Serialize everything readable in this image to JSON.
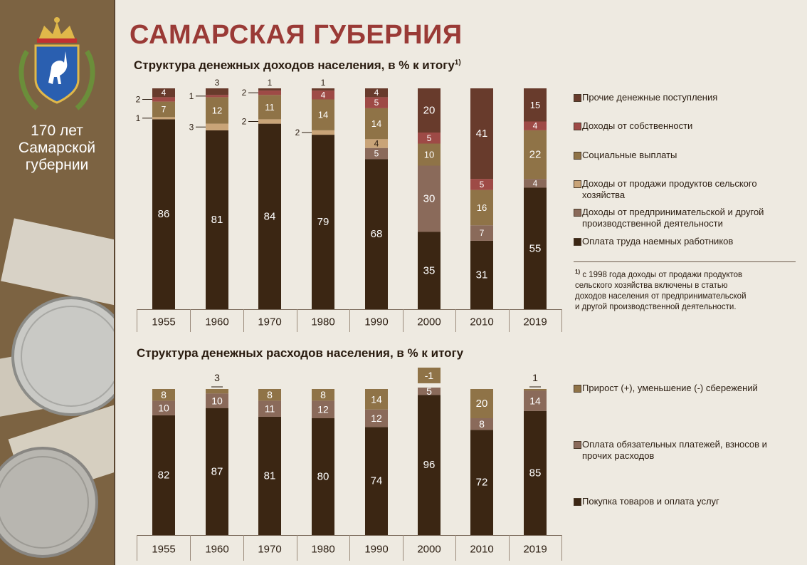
{
  "page": {
    "title": "САМАРСКАЯ ГУБЕРНИЯ",
    "sidebar_lines": [
      "170 лет",
      "Самарской",
      "губернии"
    ],
    "footnote": {
      "mark": "1)",
      "lines": [
        "с 1998 года доходы от продажи продуктов",
        "сельского хозяйства включены в статью",
        "доходов населения от предпринимательской",
        "и другой производственной деятельности."
      ]
    }
  },
  "colors": {
    "wages": "#3b2613",
    "business": "#8a6a5a",
    "agri": "#c9a478",
    "social": "#8f7347",
    "property": "#9e4a46",
    "other": "#683b2c",
    "spend_goods": "#3b2613",
    "spend_payments": "#8a6a5a",
    "spend_savings": "#8f7347"
  },
  "chart_data": [
    {
      "type": "bar",
      "stacked": true,
      "title": "Структура денежных доходов населения, в % к итогу",
      "title_note": "1)",
      "categories": [
        "1955",
        "1960",
        "1970",
        "1980",
        "1990",
        "2000",
        "2010",
        "2019"
      ],
      "ylim": [
        0,
        100
      ],
      "grid": false,
      "legend_position": "right",
      "series": [
        {
          "key": "wages",
          "name": "Оплата труда наемных работников",
          "values": [
            86,
            81,
            84,
            79,
            68,
            35,
            31,
            55
          ]
        },
        {
          "key": "business",
          "name": "Доходы от предпринимательской и другой производственной деятельности",
          "values": [
            0,
            0,
            0,
            0,
            5,
            30,
            7,
            4
          ]
        },
        {
          "key": "agri",
          "name": "Доходы от продажи продуктов сельского хозяйства",
          "values": [
            1,
            3,
            2,
            2,
            4,
            0,
            0,
            0
          ]
        },
        {
          "key": "social",
          "name": "Социальные выплаты",
          "values": [
            7,
            12,
            11,
            14,
            14,
            10,
            16,
            22
          ]
        },
        {
          "key": "property",
          "name": "Доходы от собственности",
          "values": [
            2,
            1,
            2,
            4,
            5,
            5,
            5,
            4
          ]
        },
        {
          "key": "other",
          "name": "Прочие денежные поступления",
          "values": [
            4,
            3,
            1,
            1,
            4,
            20,
            41,
            15
          ]
        }
      ]
    },
    {
      "type": "bar",
      "stacked": true,
      "title": "Структура денежных расходов населения, в % к итогу",
      "categories": [
        "1955",
        "1960",
        "1970",
        "1980",
        "1990",
        "2000",
        "2010",
        "2019"
      ],
      "ylim": [
        0,
        100
      ],
      "grid": false,
      "legend_position": "right",
      "series": [
        {
          "key": "spend_goods",
          "name": "Покупка товаров и оплата услуг",
          "values": [
            82,
            87,
            81,
            80,
            74,
            96,
            72,
            85
          ]
        },
        {
          "key": "spend_payments",
          "name": "Оплата обязательных платежей, взносов и прочих расходов",
          "values": [
            10,
            10,
            11,
            12,
            12,
            5,
            8,
            14
          ]
        },
        {
          "key": "spend_savings",
          "name": "Прирост (+), уменьшение (-) сбережений",
          "values": [
            8,
            3,
            8,
            8,
            14,
            -1,
            20,
            1
          ]
        }
      ]
    }
  ]
}
